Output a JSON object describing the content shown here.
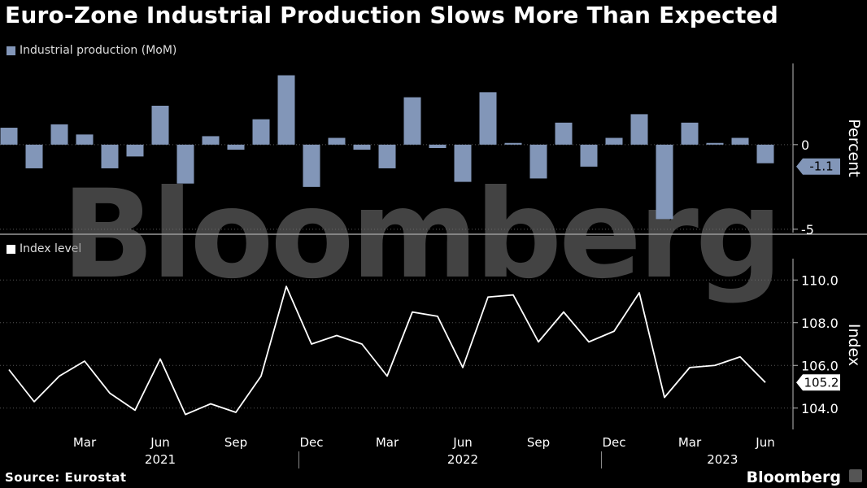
{
  "title": "Euro-Zone Industrial Production Slows More Than Expected",
  "source": "Source: Eurostat",
  "brand": "Bloomberg",
  "watermark": "Bloomberg",
  "colors": {
    "bar": "#8296b8",
    "line": "#ffffff",
    "grid": "#555555",
    "background": "#000000"
  },
  "chart_data": [
    {
      "type": "bar",
      "legend": "Industrial production (MoM)",
      "axis_title": "Percent",
      "ylim": [
        -5.2,
        4.8
      ],
      "yticks": [
        0,
        -5
      ],
      "last_value_label": "-1.1",
      "x_start": "2020-12",
      "values": [
        1.0,
        -1.4,
        1.2,
        0.6,
        -1.4,
        -0.7,
        2.3,
        -2.3,
        0.5,
        -0.3,
        1.5,
        4.1,
        -2.5,
        0.4,
        -0.3,
        -1.4,
        2.8,
        -0.2,
        -2.2,
        3.1,
        0.1,
        -2.0,
        1.3,
        -1.3,
        0.4,
        1.8,
        -4.4,
        1.3,
        0.1,
        0.4,
        -1.1
      ]
    },
    {
      "type": "line",
      "legend": "Index level",
      "axis_title": "Index",
      "ylim": [
        103.0,
        111.0
      ],
      "yticks": [
        "110.0",
        "108.0",
        "106.0",
        "104.0"
      ],
      "last_value_label": "105.2",
      "x_start": "2020-12",
      "values": [
        105.8,
        104.3,
        105.5,
        106.2,
        104.7,
        103.9,
        106.3,
        103.7,
        104.2,
        103.8,
        105.5,
        109.7,
        107.0,
        107.4,
        107.0,
        105.5,
        108.5,
        108.3,
        105.9,
        109.2,
        109.3,
        107.1,
        108.5,
        107.1,
        107.6,
        109.4,
        104.5,
        105.9,
        106.0,
        106.4,
        105.2
      ]
    }
  ],
  "x_axis": {
    "month_labels": [
      "Mar",
      "Jun",
      "Sep",
      "Dec",
      "Mar",
      "Jun",
      "Sep",
      "Dec",
      "Mar",
      "Jun"
    ],
    "month_indices": [
      3,
      6,
      9,
      12,
      15,
      18,
      21,
      24,
      27,
      30
    ],
    "year_labels": [
      "2021",
      "2022",
      "2023"
    ],
    "year_label_indices": [
      6,
      18,
      28.3
    ],
    "year_separator_indices": [
      11.5,
      23.5
    ]
  }
}
